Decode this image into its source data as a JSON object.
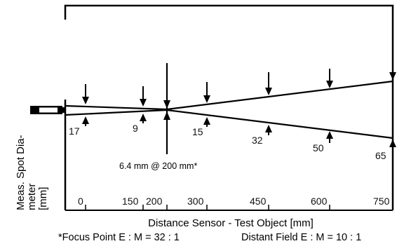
{
  "diagram": {
    "y_label_lines": [
      "Meas. Spot Dia-",
      "meter",
      "[mm]"
    ],
    "x_axis_title": "Distance Sensor - Test Object [mm]",
    "focus_note": "6.4 mm @ 200 mm*",
    "footnote_focus": "*Focus Point E : M = 32 : 1",
    "footnote_distant": "Distant Field E : M = 10 : 1",
    "distances": [
      "0",
      "150",
      "200",
      "300",
      "450",
      "600",
      "750"
    ],
    "spot_diameters": [
      {
        "distance": 0,
        "label": "17"
      },
      {
        "distance": 150,
        "label": "9"
      },
      {
        "distance": 300,
        "label": "15"
      },
      {
        "distance": 450,
        "label": "32"
      },
      {
        "distance": 600,
        "label": "50"
      },
      {
        "distance": 750,
        "label": "65"
      }
    ],
    "colors": {
      "ink": "#000000",
      "background": "#ffffff"
    }
  }
}
